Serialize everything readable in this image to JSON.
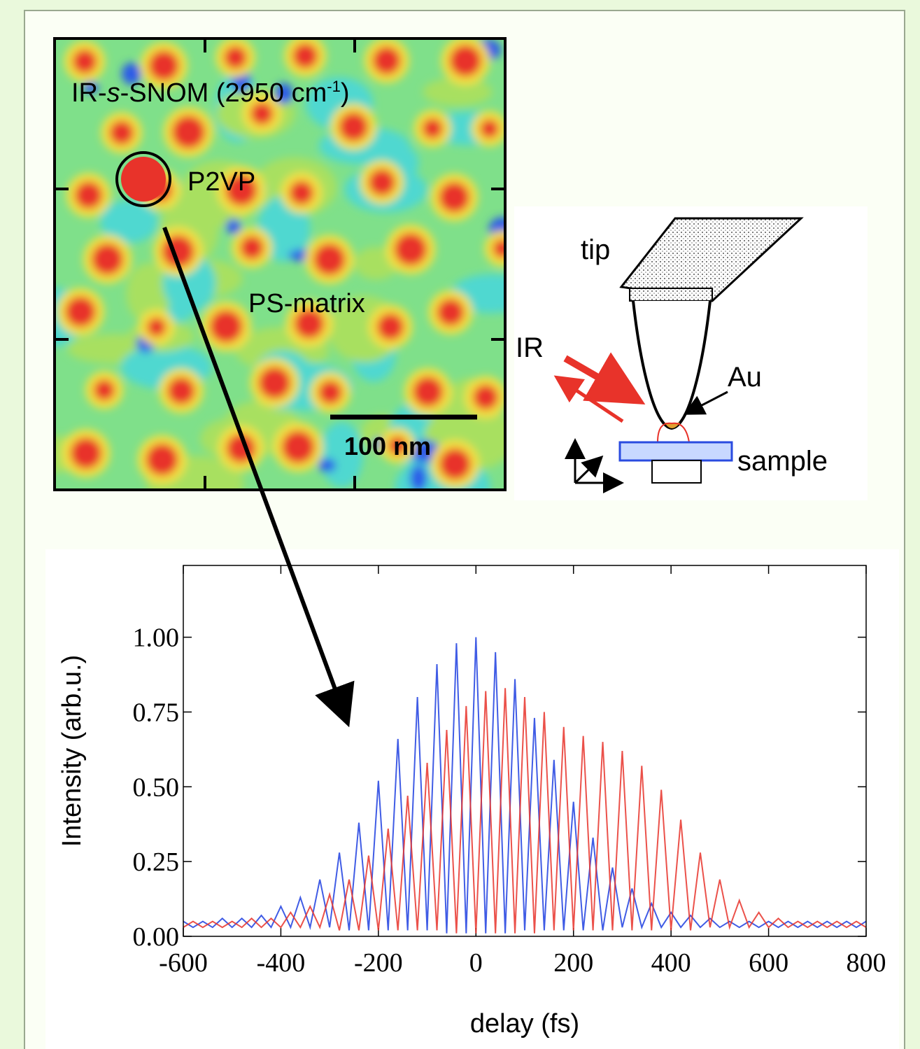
{
  "image": {
    "label_parts": [
      "IR-",
      "s",
      "-SNOM (2950 cm",
      "-1",
      ")"
    ],
    "particle_label": "P2VP",
    "matrix_label": "PS-matrix",
    "scale_bar_label": "100 nm"
  },
  "diagram": {
    "tip_label": "tip",
    "beam_label": "IR",
    "coating_label": "Au",
    "sample_label": "sample"
  },
  "chart_data": {
    "type": "line",
    "x_label": "delay (fs)",
    "y_label": "Intensity (arb.u.)",
    "xlim": [
      -600,
      800
    ],
    "xticks": [
      -600,
      -400,
      -200,
      0,
      200,
      400,
      600,
      800
    ],
    "ylim": [
      0,
      1.24
    ],
    "yticks": [
      {
        "value": 0,
        "label": "0.00"
      },
      {
        "value": 0.25,
        "label": "0.25"
      },
      {
        "value": 0.5,
        "label": "0.50"
      },
      {
        "value": 0.75,
        "label": "0.75"
      },
      {
        "value": 1,
        "label": "1.00"
      }
    ],
    "x": [
      -600,
      -580,
      -560,
      -540,
      -520,
      -500,
      -480,
      -460,
      -440,
      -420,
      -400,
      -380,
      -360,
      -340,
      -320,
      -300,
      -280,
      -260,
      -240,
      -220,
      -200,
      -180,
      -160,
      -140,
      -120,
      -100,
      -80,
      -60,
      -40,
      -20,
      0,
      20,
      40,
      60,
      80,
      100,
      120,
      140,
      160,
      180,
      200,
      220,
      240,
      260,
      280,
      300,
      320,
      340,
      360,
      380,
      400,
      420,
      440,
      460,
      480,
      500,
      520,
      540,
      560,
      580,
      600,
      620,
      640,
      660,
      680,
      700,
      720,
      740,
      760,
      780,
      800
    ],
    "series": [
      {
        "color": "#1f3fe0",
        "values": [
          0.05,
          0.03,
          0.05,
          0.03,
          0.06,
          0.03,
          0.06,
          0.03,
          0.07,
          0.03,
          0.1,
          0.03,
          0.13,
          0.03,
          0.19,
          0.03,
          0.28,
          0.02,
          0.38,
          0.02,
          0.52,
          0.02,
          0.66,
          0.02,
          0.8,
          0.02,
          0.91,
          0.01,
          0.98,
          0.01,
          1.0,
          0.01,
          0.95,
          0.01,
          0.86,
          0.02,
          0.73,
          0.02,
          0.59,
          0.02,
          0.45,
          0.02,
          0.33,
          0.02,
          0.23,
          0.03,
          0.16,
          0.03,
          0.11,
          0.03,
          0.08,
          0.03,
          0.07,
          0.03,
          0.06,
          0.03,
          0.05,
          0.03,
          0.05,
          0.03,
          0.05,
          0.03,
          0.05,
          0.03,
          0.05,
          0.03,
          0.05,
          0.03,
          0.05,
          0.03,
          0.05
        ]
      },
      {
        "color": "#e8332a",
        "values": [
          0.03,
          0.05,
          0.03,
          0.05,
          0.03,
          0.05,
          0.03,
          0.06,
          0.03,
          0.06,
          0.03,
          0.08,
          0.03,
          0.1,
          0.03,
          0.14,
          0.02,
          0.19,
          0.02,
          0.27,
          0.02,
          0.36,
          0.02,
          0.47,
          0.02,
          0.58,
          0.02,
          0.69,
          0.01,
          0.77,
          0.01,
          0.82,
          0.01,
          0.83,
          0.01,
          0.8,
          0.01,
          0.75,
          0.02,
          0.7,
          0.02,
          0.67,
          0.02,
          0.65,
          0.02,
          0.62,
          0.02,
          0.57,
          0.02,
          0.49,
          0.02,
          0.39,
          0.02,
          0.28,
          0.03,
          0.19,
          0.03,
          0.12,
          0.03,
          0.08,
          0.03,
          0.06,
          0.03,
          0.05,
          0.03,
          0.05,
          0.03,
          0.05,
          0.03,
          0.05,
          0.03
        ]
      }
    ]
  }
}
